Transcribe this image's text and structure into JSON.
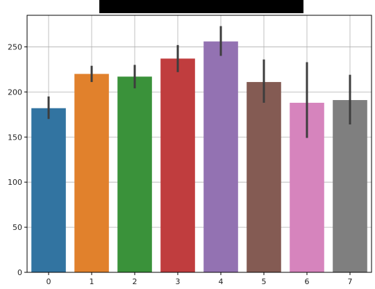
{
  "chart_data": {
    "type": "bar",
    "categories": [
      "0",
      "1",
      "2",
      "3",
      "4",
      "5",
      "6",
      "7"
    ],
    "values": [
      182,
      220,
      217,
      237,
      256,
      211,
      188,
      191
    ],
    "error_low": [
      170,
      211,
      204,
      222,
      240,
      188,
      149,
      164
    ],
    "error_high": [
      195,
      229,
      230,
      252,
      273,
      236,
      233,
      219
    ],
    "colors": [
      "#3274a1",
      "#e1812c",
      "#3a923a",
      "#c03d3e",
      "#9372b2",
      "#845b53",
      "#d684bd",
      "#7f7f7f"
    ],
    "errorbar_color": "#3d3d3d",
    "title": "",
    "title_redacted": true,
    "xlabel": "",
    "ylabel": "",
    "ylim": [
      0,
      285
    ],
    "yticks": [
      0,
      50,
      100,
      150,
      200,
      250
    ],
    "grid": true
  }
}
